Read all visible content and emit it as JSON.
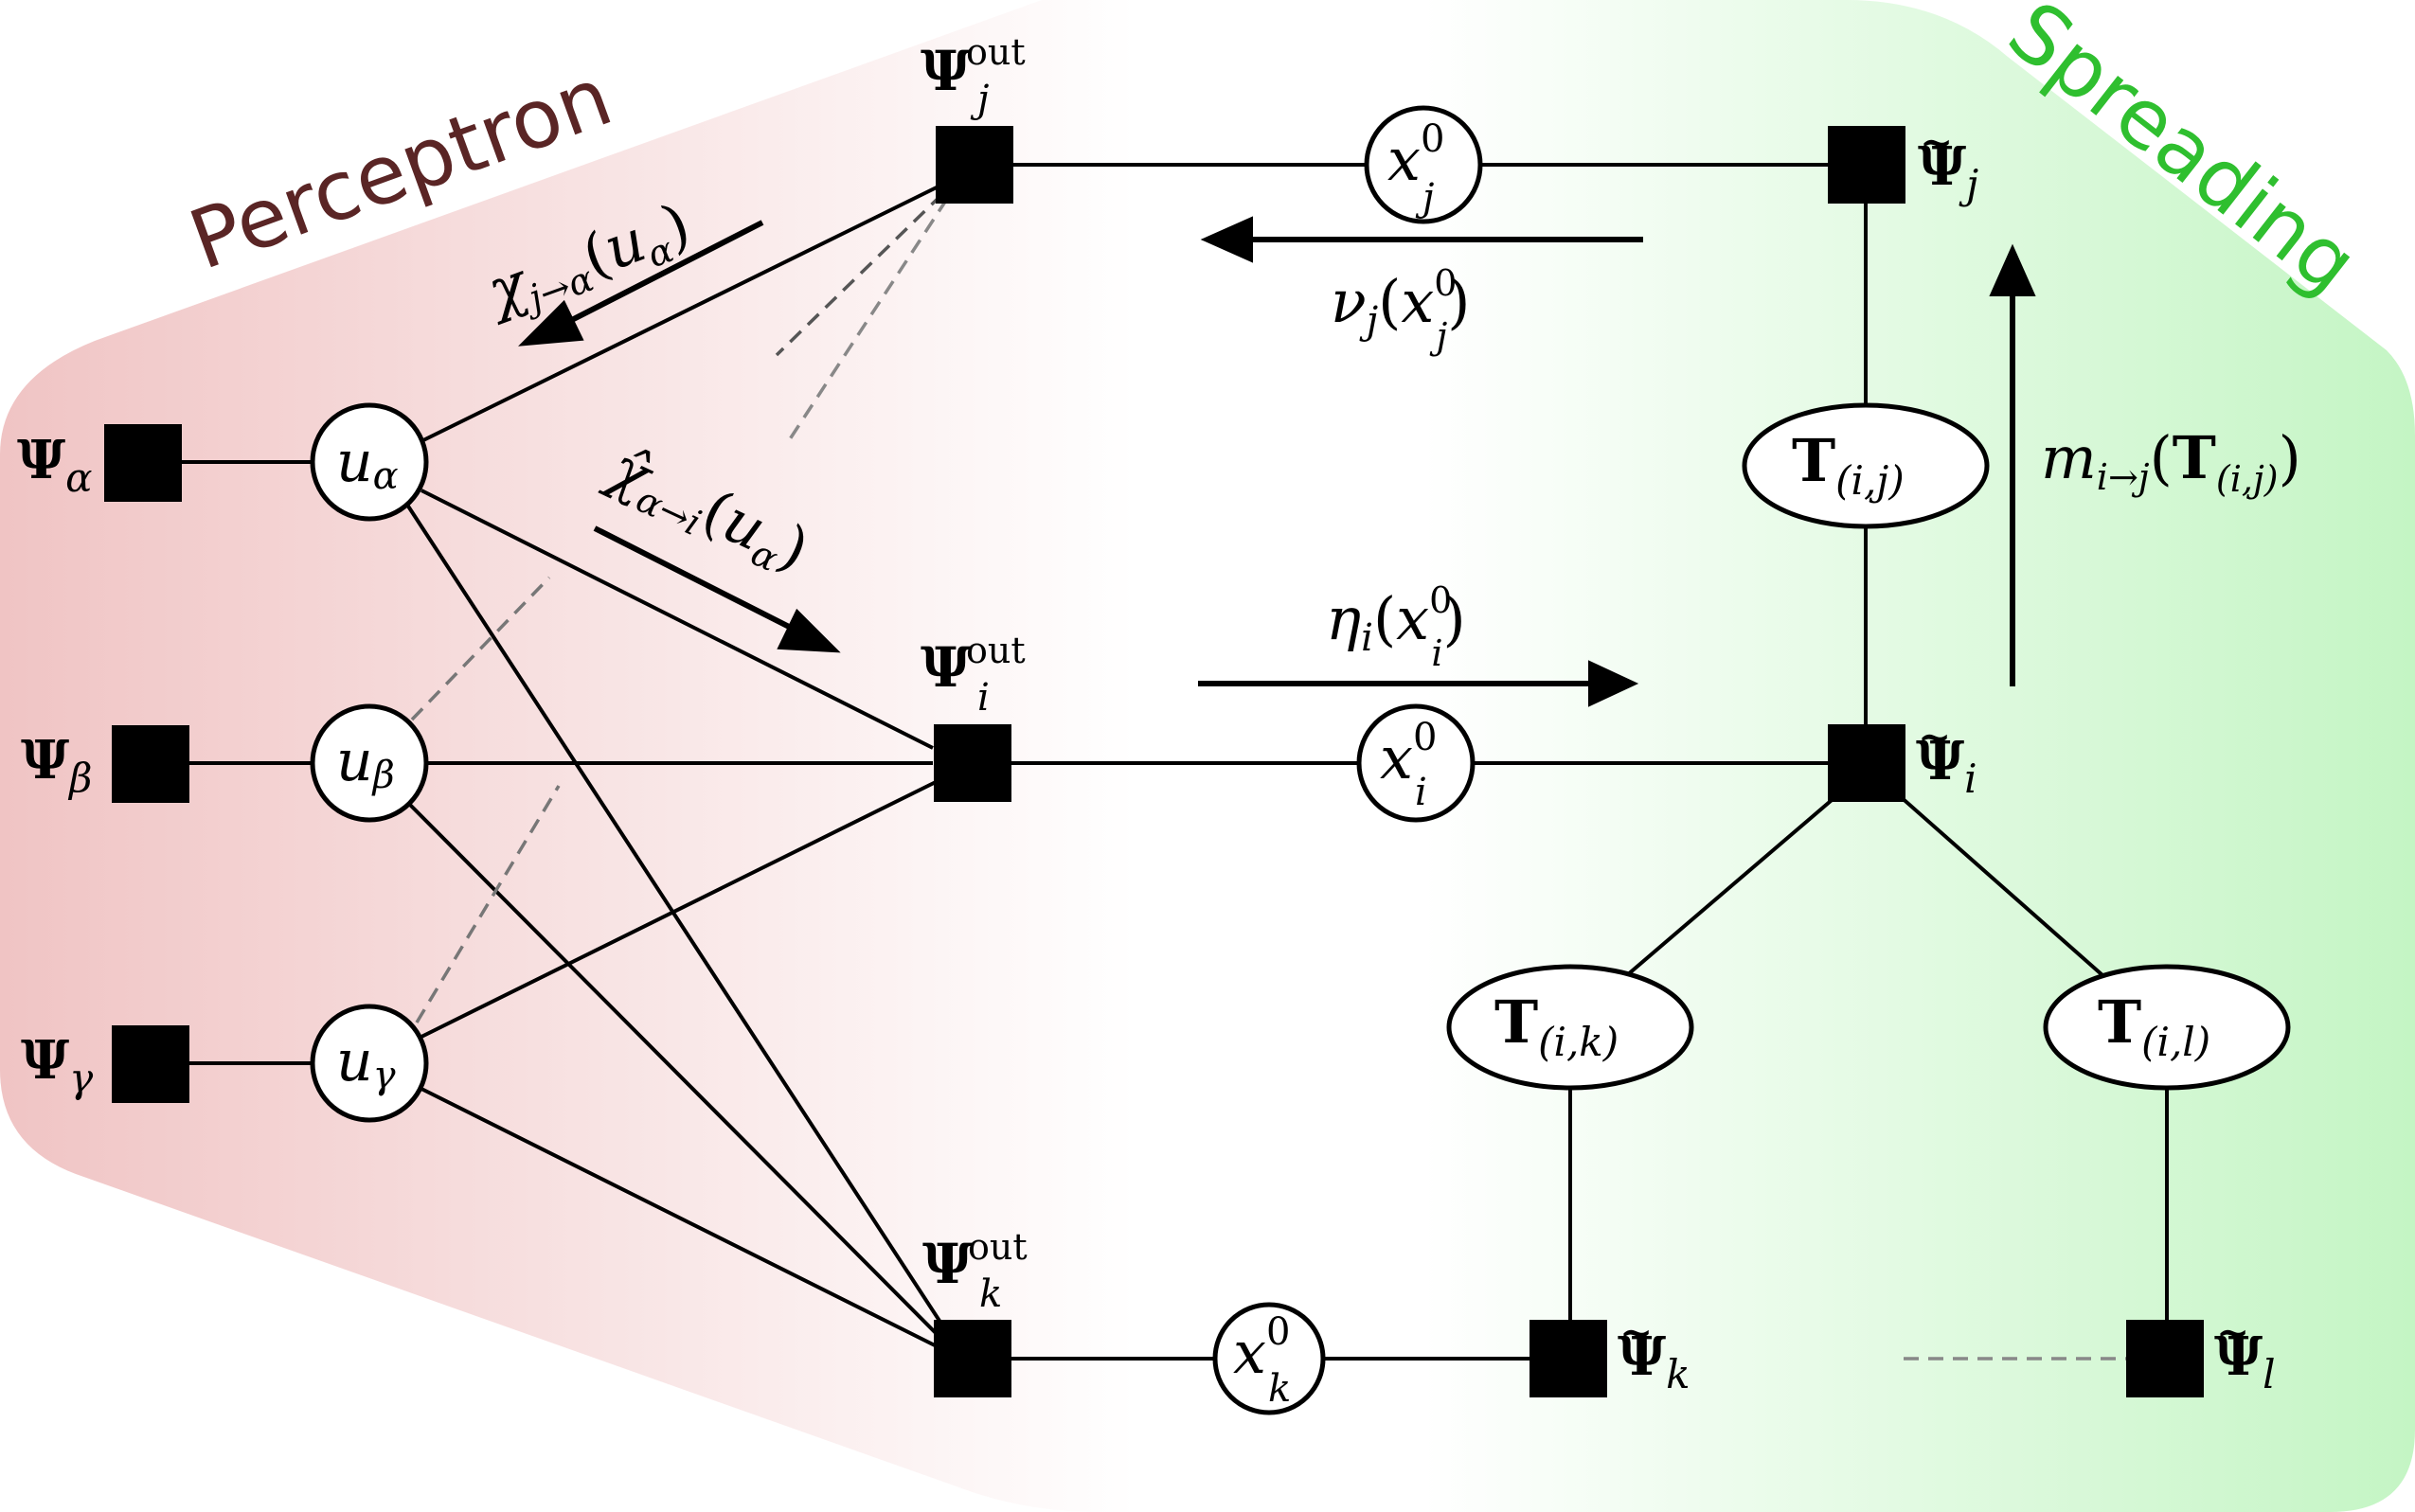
{
  "regions": {
    "left_label": "Perceptron",
    "right_label": "Spreading",
    "left_label_color": "#5a2525",
    "right_label_color": "#2fbf2f",
    "left_fill": "#f0c4c4",
    "right_fill": "#c4f5c4"
  },
  "factors": {
    "psi": "Ψ",
    "sub_alpha": "α",
    "sub_beta": "β",
    "sub_gamma": "γ",
    "sup_out": "out",
    "sub_j": "j",
    "sub_i": "i",
    "sub_k": "k",
    "sub_l": "l",
    "tilde": "~"
  },
  "variables": {
    "u": "u",
    "x": "x",
    "sup_zero": "0",
    "T": "T",
    "T_ij_sub": "(i,j)",
    "T_ik_sub": "(i,k)",
    "T_il_sub": "(i,l)"
  },
  "messages": {
    "chi_j_alpha": {
      "symbol": "χ",
      "sub": "j→α",
      "arg_open": "(",
      "arg_var": "u",
      "arg_sub": "α",
      "arg_close": ")"
    },
    "chi_hat_alpha_i": {
      "symbol": "χ̂",
      "sub": "α→i",
      "arg_open": "(",
      "arg_var": "u",
      "arg_sub": "α",
      "arg_close": ")"
    },
    "nu_j": {
      "symbol": "ν",
      "sub": "j",
      "arg_open": "(",
      "arg_var": "x",
      "arg_sup": "0",
      "arg_sub": "j",
      "arg_close": ")"
    },
    "eta_i": {
      "symbol": "η",
      "sub": "i",
      "arg_open": "(",
      "arg_var": "x",
      "arg_sup": "0",
      "arg_sub": "i",
      "arg_close": ")"
    },
    "m_i_j": {
      "symbol": "m",
      "sub": "i→j",
      "arg_open": "(",
      "arg_var": "T",
      "arg_sub": "(i,j)",
      "arg_close": ")"
    }
  }
}
